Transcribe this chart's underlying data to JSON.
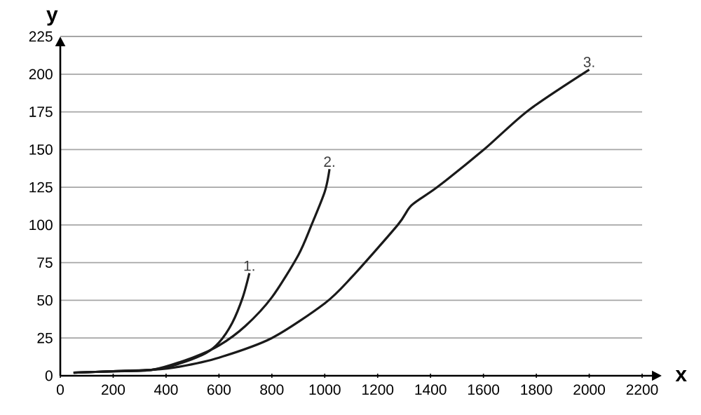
{
  "chart_data": {
    "type": "line",
    "xlabel": "x",
    "ylabel": "y",
    "xlim": [
      0,
      2200
    ],
    "ylim": [
      0,
      225
    ],
    "xticks": [
      0,
      200,
      400,
      600,
      800,
      1000,
      1200,
      1400,
      1600,
      1800,
      2000,
      2200
    ],
    "yticks": [
      0,
      25,
      50,
      75,
      100,
      125,
      150,
      175,
      200,
      225
    ],
    "grid": "y",
    "line_style": "solid",
    "series": [
      {
        "color": "#1a1a1a",
        "x": [
          50,
          200,
          350,
          450,
          550,
          600,
          650,
          690,
          715
        ],
        "values": [
          2,
          3,
          4,
          8,
          15,
          22,
          35,
          52,
          68
        ]
      },
      {
        "color": "#1a1a1a",
        "x": [
          50,
          200,
          350,
          500,
          600,
          700,
          800,
          900,
          950,
          1000,
          1018
        ],
        "values": [
          2,
          3,
          4,
          12,
          20,
          33,
          52,
          80,
          100,
          122,
          137
        ]
      },
      {
        "color": "#1a1a1a",
        "x": [
          50,
          200,
          350,
          450,
          600,
          800,
          1000,
          1100,
          1276,
          1328,
          1425,
          1602,
          1770,
          2000
        ],
        "values": [
          2,
          3,
          4,
          6,
          12,
          25,
          48,
          65,
          100,
          113,
          125,
          150,
          176,
          203
        ]
      }
    ],
    "annotations": [
      {
        "text": "1.",
        "x": 715,
        "y": 68
      },
      {
        "text": "2.",
        "x": 1018,
        "y": 137
      },
      {
        "text": "3.",
        "x": 2000,
        "y": 203
      }
    ]
  }
}
